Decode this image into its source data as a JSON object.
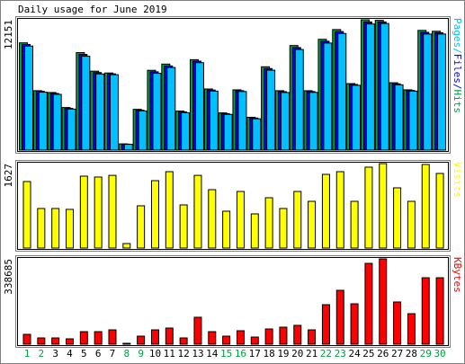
{
  "chart_data": [
    {
      "type": "bar",
      "title": "Daily usage for June 2019",
      "legend_separator": "/",
      "series": [
        {
          "name": "Hits",
          "color": "#00a040",
          "values": [
            10000,
            5540,
            5370,
            3970,
            9090,
            7360,
            7190,
            580,
            3800,
            7440,
            8020,
            3640,
            8430,
            5700,
            3470,
            5620,
            3060,
            7770,
            5540,
            9750,
            5540,
            10330,
            11240,
            6200,
            12151,
            12100,
            6280,
            5620,
            11160,
            11080
          ]
        },
        {
          "name": "Files",
          "color": "#0000ff",
          "values": [
            9850,
            5480,
            5280,
            3890,
            8920,
            7230,
            7110,
            560,
            3720,
            7300,
            7850,
            3560,
            8290,
            5600,
            3400,
            5540,
            2990,
            7600,
            5450,
            9560,
            5460,
            10150,
            11050,
            6120,
            11950,
            11950,
            6180,
            5560,
            10980,
            10950
          ]
        },
        {
          "name": "Pages",
          "color": "#00c0ff",
          "values": [
            9700,
            5400,
            5200,
            3820,
            8750,
            7100,
            7030,
            540,
            3650,
            7160,
            7700,
            3480,
            8150,
            5500,
            3330,
            5460,
            2920,
            7450,
            5370,
            9380,
            5380,
            9980,
            10870,
            6040,
            11760,
            11800,
            6090,
            5500,
            10820,
            10820
          ]
        }
      ],
      "ylim": [
        0,
        12151
      ],
      "yticks": [
        12151
      ]
    },
    {
      "type": "bar",
      "series": [
        {
          "name": "Visits",
          "color": "#ffff00",
          "values": [
            1281,
            762,
            762,
            745,
            1385,
            1368,
            1400,
            87,
            814,
            1298,
            1471,
            831,
            1400,
            1125,
            710,
            1090,
            658,
            969,
            762,
            1090,
            900,
            1419,
            1471,
            900,
            1558,
            1627,
            1160,
            900,
            1610,
            1437
          ]
        }
      ],
      "ylim": [
        0,
        1627
      ],
      "yticks": [
        1627
      ]
    },
    {
      "type": "bar",
      "series": [
        {
          "name": "KBytes",
          "color": "#ff0000",
          "values": [
            39200,
            25000,
            25000,
            21400,
            49900,
            49900,
            57000,
            3600,
            32100,
            57000,
            64200,
            25000,
            107000,
            49900,
            32100,
            53500,
            28500,
            60600,
            67700,
            74900,
            57000,
            156900,
            213900,
            160400,
            320800,
            338685,
            167600,
            121200,
            263800,
            263800
          ]
        }
      ],
      "ylim": [
        0,
        338685
      ],
      "yticks": [
        338685
      ],
      "categories": [
        "1",
        "2",
        "3",
        "4",
        "5",
        "6",
        "7",
        "8",
        "9",
        "10",
        "11",
        "12",
        "13",
        "14",
        "15",
        "16",
        "17",
        "18",
        "19",
        "20",
        "21",
        "22",
        "23",
        "24",
        "25",
        "26",
        "27",
        "28",
        "29",
        "30"
      ],
      "category_label_colors": [
        "#00a040",
        "#00a040",
        "#000000",
        "#000000",
        "#000000",
        "#000000",
        "#000000",
        "#00a040",
        "#00a040",
        "#000000",
        "#000000",
        "#000000",
        "#000000",
        "#000000",
        "#00a040",
        "#00a040",
        "#000000",
        "#000000",
        "#000000",
        "#000000",
        "#000000",
        "#00a040",
        "#00a040",
        "#000000",
        "#000000",
        "#000000",
        "#000000",
        "#000000",
        "#00a040",
        "#00a040"
      ]
    }
  ]
}
